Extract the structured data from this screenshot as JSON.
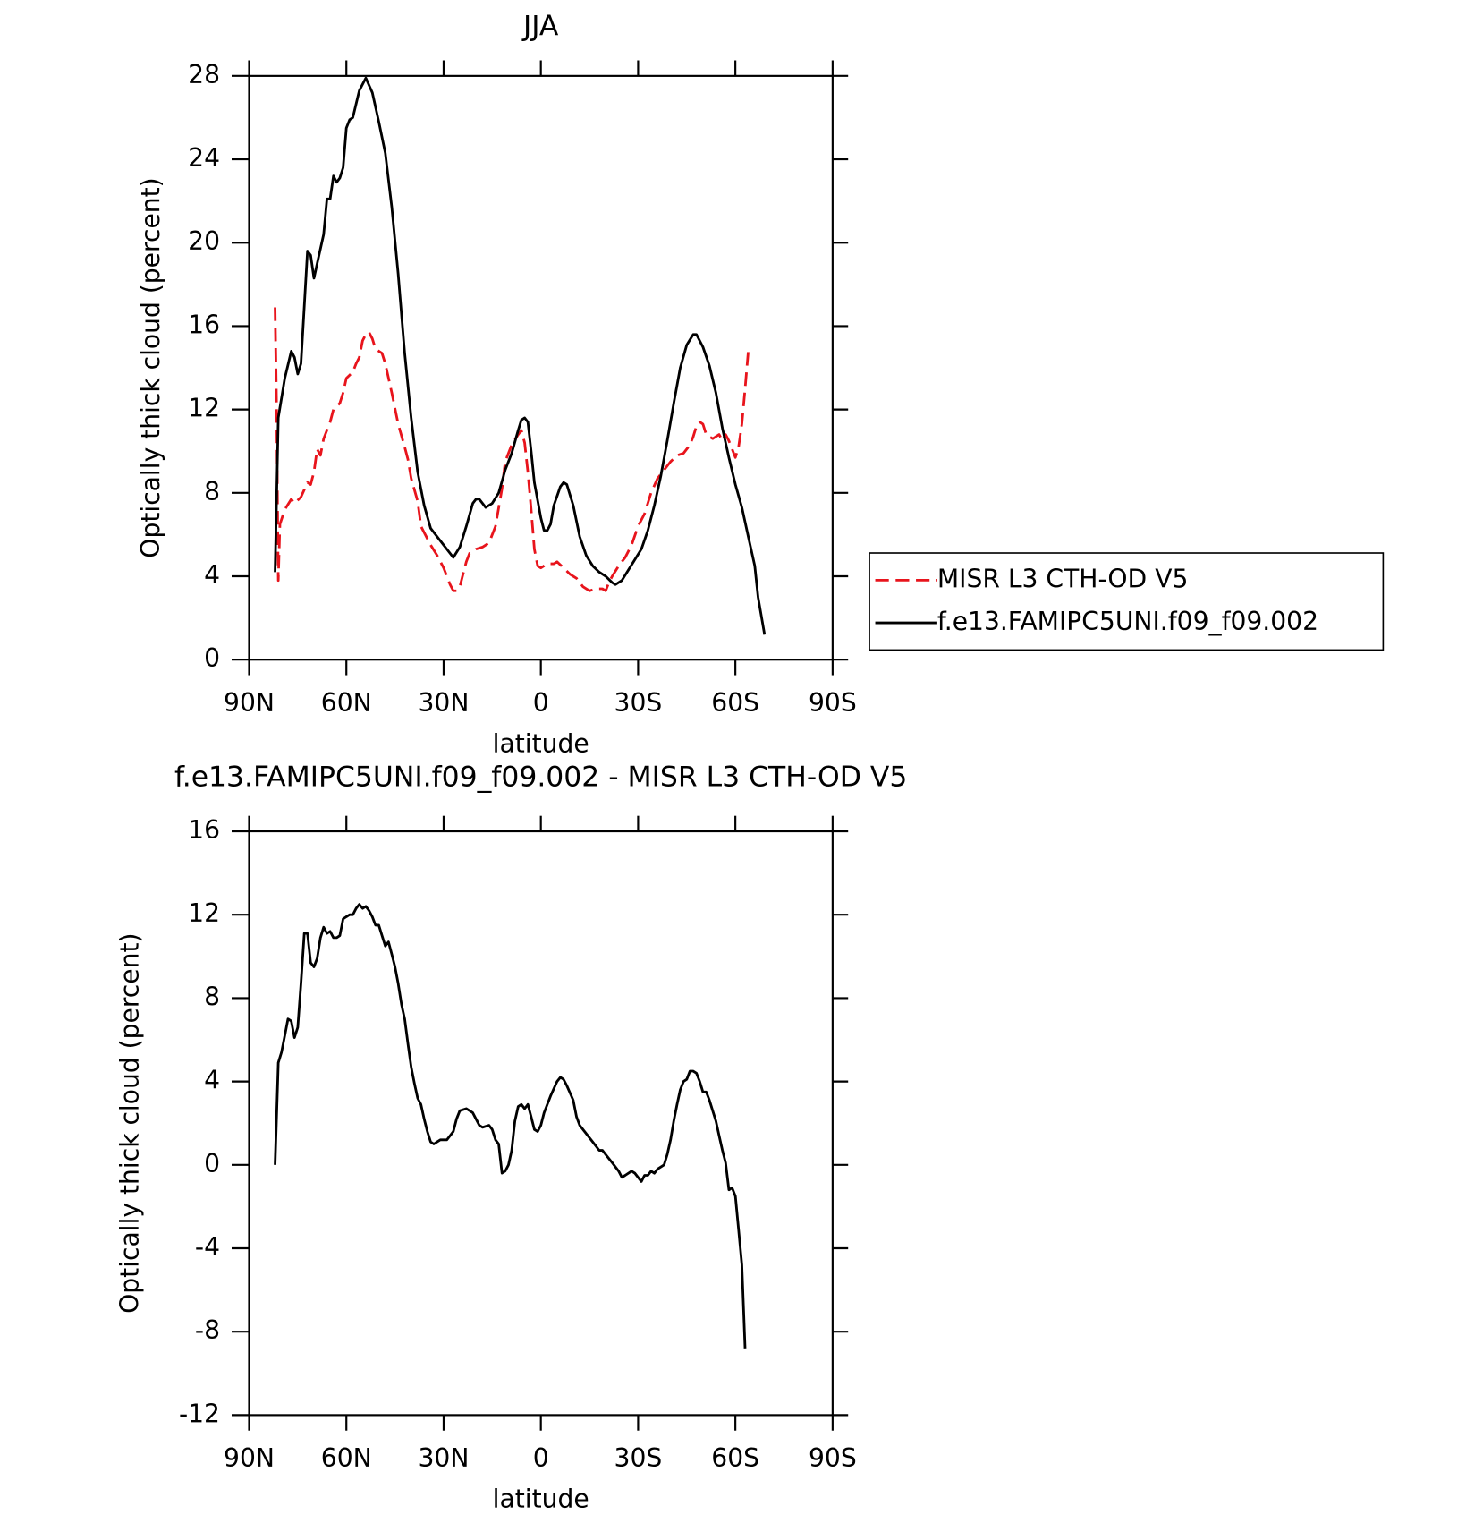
{
  "chart_data": [
    {
      "type": "line",
      "title": "JJA",
      "x_label": "latitude",
      "y_label": "Optically thick cloud (percent)",
      "xlim": [
        90,
        -90
      ],
      "xticks": [
        {
          "value": 90,
          "label": "90N"
        },
        {
          "value": 60,
          "label": "60N"
        },
        {
          "value": 30,
          "label": "30N"
        },
        0,
        {
          "value": -30,
          "label": "30S"
        },
        {
          "value": -60,
          "label": "60S"
        },
        {
          "value": -90,
          "label": "90S"
        }
      ],
      "ylim": [
        0,
        28
      ],
      "yticks": [
        0,
        4,
        8,
        12,
        16,
        20,
        24,
        28
      ],
      "legend": "right",
      "series": [
        {
          "name": "MISR L3 CTH-OD V5",
          "color": "#e8141c",
          "dashed": true,
          "x": [
            82,
            81.5,
            81,
            80.5,
            79,
            77,
            76,
            74,
            72,
            71,
            70,
            69,
            68,
            67,
            65,
            64,
            62,
            61,
            60,
            58,
            57,
            56,
            55,
            54,
            53,
            52,
            51,
            49,
            48,
            46,
            44,
            42,
            41,
            40,
            38,
            37,
            36,
            34,
            32,
            30,
            28,
            27,
            26,
            25,
            24,
            23,
            22,
            20,
            18,
            16,
            14,
            12,
            11,
            9,
            7,
            6,
            5,
            4,
            3,
            2,
            1,
            0,
            -2,
            -4,
            -5,
            -7,
            -9,
            -11,
            -13,
            -15,
            -17,
            -19,
            -20,
            -21,
            -22,
            -24,
            -26,
            -28,
            -30,
            -32,
            -34,
            -36,
            -38,
            -40,
            -42,
            -44,
            -46,
            -47,
            -48,
            -49,
            -50,
            -51,
            -53,
            -55,
            -56,
            -57,
            -58,
            -60,
            -61,
            -62,
            -63,
            -64
          ],
          "values": [
            16.9,
            12,
            3.8,
            6.5,
            7.2,
            7.7,
            7.5,
            7.8,
            8.5,
            8.4,
            9,
            10.1,
            9.8,
            10.6,
            11.4,
            12,
            12.3,
            12.8,
            13.5,
            13.8,
            14.2,
            14.5,
            15.3,
            15.6,
            15.7,
            15.4,
            14.9,
            14.7,
            14.2,
            12.8,
            11.3,
            10.2,
            9.6,
            8.7,
            7.6,
            6.4,
            6.1,
            5.5,
            5,
            4.4,
            3.6,
            3.3,
            3.3,
            3.5,
            4.1,
            4.7,
            5.1,
            5.3,
            5.4,
            5.6,
            6.4,
            8.2,
            9.5,
            10.3,
            10.8,
            11,
            10.4,
            9,
            7.2,
            5.3,
            4.5,
            4.4,
            4.6,
            4.6,
            4.7,
            4.4,
            4.1,
            3.9,
            3.5,
            3.3,
            3.4,
            3.4,
            3.3,
            3.7,
            4,
            4.5,
            4.9,
            5.5,
            6.4,
            7,
            8,
            8.7,
            9.1,
            9.5,
            9.8,
            9.9,
            10.3,
            10.7,
            11.2,
            11.4,
            11.3,
            10.8,
            10.6,
            10.8,
            10.5,
            10.8,
            10.5,
            9.7,
            10.2,
            11.3,
            13,
            14.8
          ]
        },
        {
          "name": "f.e13.FAMIPC5UNI.f09_f09.002",
          "color": "#000000",
          "dashed": false,
          "x": [
            82,
            81,
            79,
            77,
            76,
            75,
            74,
            72,
            71,
            70,
            69,
            67,
            66,
            65,
            64,
            63,
            62,
            61,
            60,
            59,
            58,
            56,
            54,
            52,
            50,
            48,
            46,
            44,
            42,
            40,
            38,
            36,
            34,
            32,
            30,
            28,
            27,
            25,
            23,
            21,
            20,
            19,
            17,
            15,
            13,
            11,
            9,
            7,
            6,
            5,
            4,
            3,
            2,
            0,
            -1,
            -2,
            -3,
            -4,
            -6,
            -7,
            -8,
            -10,
            -12,
            -14,
            -16,
            -18,
            -20,
            -22,
            -23,
            -25,
            -27,
            -29,
            -31,
            -33,
            -35,
            -37,
            -39,
            -41,
            -43,
            -45,
            -47,
            -48,
            -50,
            -52,
            -54,
            -56,
            -58,
            -60,
            -62,
            -64,
            -66,
            -67,
            -69
          ],
          "values": [
            4.2,
            11.6,
            13.5,
            14.8,
            14.5,
            13.7,
            14.2,
            19.6,
            19.4,
            18.3,
            19,
            20.4,
            22.1,
            22.1,
            23.2,
            22.9,
            23.1,
            23.6,
            25.5,
            25.9,
            26,
            27.3,
            27.9,
            27.2,
            25.8,
            24.3,
            21.7,
            18.5,
            14.7,
            11.6,
            9,
            7.4,
            6.3,
            5.9,
            5.5,
            5.1,
            4.9,
            5.4,
            6.4,
            7.5,
            7.7,
            7.7,
            7.3,
            7.5,
            8,
            9.1,
            9.9,
            11,
            11.5,
            11.6,
            11.4,
            10,
            8.5,
            6.8,
            6.2,
            6.2,
            6.5,
            7.4,
            8.3,
            8.5,
            8.4,
            7.4,
            5.9,
            5,
            4.5,
            4.2,
            4,
            3.7,
            3.6,
            3.8,
            4.3,
            4.8,
            5.3,
            6.2,
            7.4,
            8.8,
            10.5,
            12.3,
            14,
            15.1,
            15.6,
            15.6,
            15,
            14.1,
            12.8,
            11.1,
            9.7,
            8.4,
            7.3,
            5.9,
            4.5,
            3,
            1.2
          ]
        }
      ]
    },
    {
      "type": "line",
      "title": "f.e13.FAMIPC5UNI.f09_f09.002 - MISR L3 CTH-OD V5",
      "x_label": "latitude",
      "y_label": "Optically thick cloud (percent)",
      "xlim": [
        90,
        -90
      ],
      "xticks": [
        {
          "value": 90,
          "label": "90N"
        },
        {
          "value": 60,
          "label": "60N"
        },
        {
          "value": 30,
          "label": "30N"
        },
        0,
        {
          "value": -30,
          "label": "30S"
        },
        {
          "value": -60,
          "label": "60S"
        },
        {
          "value": -90,
          "label": "90S"
        }
      ],
      "ylim": [
        -12,
        16
      ],
      "yticks": [
        -12,
        -8,
        -4,
        0,
        4,
        8,
        12,
        16
      ],
      "series": [
        {
          "color": "#000000",
          "dashed": false,
          "x": [
            82,
            81,
            80,
            79,
            78,
            77,
            76,
            75,
            74,
            73,
            72,
            71,
            70,
            69,
            68,
            67,
            66,
            65,
            64,
            63,
            62,
            61,
            60,
            59,
            58,
            57,
            56,
            55,
            54,
            53,
            52,
            51,
            50,
            49,
            48,
            47,
            46,
            45,
            44,
            43,
            42,
            41,
            40,
            39,
            38,
            37,
            36,
            35,
            34,
            33,
            32,
            31,
            29,
            28,
            27,
            26,
            25,
            23,
            22,
            21,
            20,
            19,
            18,
            16,
            15,
            14,
            13,
            12,
            11,
            10,
            9,
            8,
            7,
            6,
            5,
            4,
            3,
            2,
            1,
            0,
            -1,
            -3,
            -5,
            -6,
            -7,
            -8,
            -10,
            -11,
            -12,
            -14,
            -16,
            -18,
            -19,
            -20,
            -22,
            -24,
            -25,
            -26,
            -28,
            -29,
            -30,
            -31,
            -32,
            -33,
            -34,
            -35,
            -36,
            -38,
            -39,
            -40,
            -41,
            -42,
            -43,
            -44,
            -45,
            -46,
            -47,
            -48,
            -49,
            -50,
            -51,
            -52,
            -54,
            -55,
            -56,
            -57,
            -58,
            -59,
            -60,
            -61,
            -62,
            -63
          ],
          "values": [
            0,
            4.9,
            5.4,
            6.2,
            7,
            6.9,
            6.1,
            6.6,
            8.7,
            11.1,
            11.1,
            9.7,
            9.5,
            9.9,
            10.9,
            11.4,
            11.1,
            11.2,
            10.9,
            10.9,
            11,
            11.8,
            11.9,
            12,
            12,
            12.3,
            12.5,
            12.3,
            12.4,
            12.2,
            11.9,
            11.5,
            11.5,
            11,
            10.5,
            10.7,
            10.1,
            9.5,
            8.7,
            7.7,
            7,
            5.8,
            4.7,
            3.9,
            3.2,
            2.9,
            2.2,
            1.6,
            1.1,
            1,
            1.1,
            1.2,
            1.2,
            1.4,
            1.6,
            2.2,
            2.6,
            2.7,
            2.6,
            2.5,
            2.2,
            1.9,
            1.8,
            1.9,
            1.7,
            1.2,
            1,
            -0.4,
            -0.3,
            0,
            0.7,
            2.1,
            2.8,
            2.9,
            2.7,
            2.9,
            2.3,
            1.7,
            1.6,
            1.9,
            2.5,
            3.3,
            4,
            4.2,
            4.1,
            3.8,
            3.1,
            2.3,
            1.9,
            1.5,
            1.1,
            0.7,
            0.7,
            0.5,
            0.1,
            -0.3,
            -0.6,
            -0.5,
            -0.3,
            -0.4,
            -0.6,
            -0.8,
            -0.5,
            -0.5,
            -0.3,
            -0.4,
            -0.2,
            0,
            0.5,
            1.2,
            2.1,
            2.9,
            3.6,
            4,
            4.1,
            4.5,
            4.5,
            4.4,
            4,
            3.5,
            3.5,
            3.1,
            2.1,
            1.4,
            0.7,
            0.1,
            -1.2,
            -1.1,
            -1.5,
            -3.1,
            -4.8,
            -8.8
          ]
        }
      ]
    }
  ]
}
